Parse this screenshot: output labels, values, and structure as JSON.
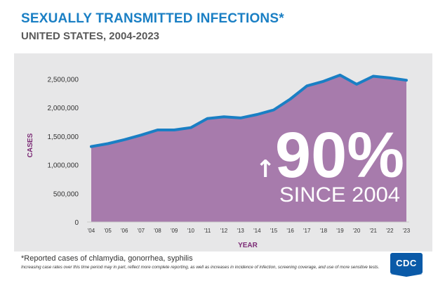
{
  "header": {
    "title": "SEXUALLY TRANSMITTED INFECTIONS*",
    "subtitle": "UNITED STATES, 2004-2023"
  },
  "callout": {
    "arrow": "↑",
    "percent": "90%",
    "text": "SINCE 2004"
  },
  "footnote": {
    "main": "*Reported cases of chlamydia, gonorrhea, syphilis",
    "detail": "Increasing case rates over this time period may in part, reflect more complete reporting, as well as increases in incidence of infection, screening coverage, and use of more sensitive tests."
  },
  "logo": {
    "text": "CDC"
  },
  "colors": {
    "title": "#1a7fc4",
    "area_fill": "#a77bac",
    "line": "#1a7fc4",
    "axis_label": "#7b2a75",
    "panel": "#e7e7e8"
  },
  "chart_data": {
    "type": "area",
    "title": "SEXUALLY TRANSMITTED INFECTIONS*",
    "subtitle": "UNITED STATES, 2004-2023",
    "xlabel": "YEAR",
    "ylabel": "CASES",
    "categories": [
      "'04",
      "'05",
      "'06",
      "'07",
      "'08",
      "'09",
      "'10",
      "'11",
      "'12",
      "'13",
      "'14",
      "'15",
      "'16",
      "'17",
      "'18",
      "'19",
      "'20",
      "'21",
      "'22",
      "'23"
    ],
    "values": [
      1320000,
      1370000,
      1440000,
      1520000,
      1610000,
      1610000,
      1650000,
      1810000,
      1840000,
      1820000,
      1880000,
      1960000,
      2150000,
      2380000,
      2460000,
      2570000,
      2410000,
      2550000,
      2520000,
      2480000
    ],
    "yticks": [
      "0",
      "500,000",
      "1,000,000",
      "1,500,000",
      "2,000,000",
      "2,500,000"
    ],
    "ytick_values": [
      0,
      500000,
      1000000,
      1500000,
      2000000,
      2500000
    ],
    "ylim": [
      0,
      2900000
    ],
    "grid": false,
    "legend": "none"
  }
}
